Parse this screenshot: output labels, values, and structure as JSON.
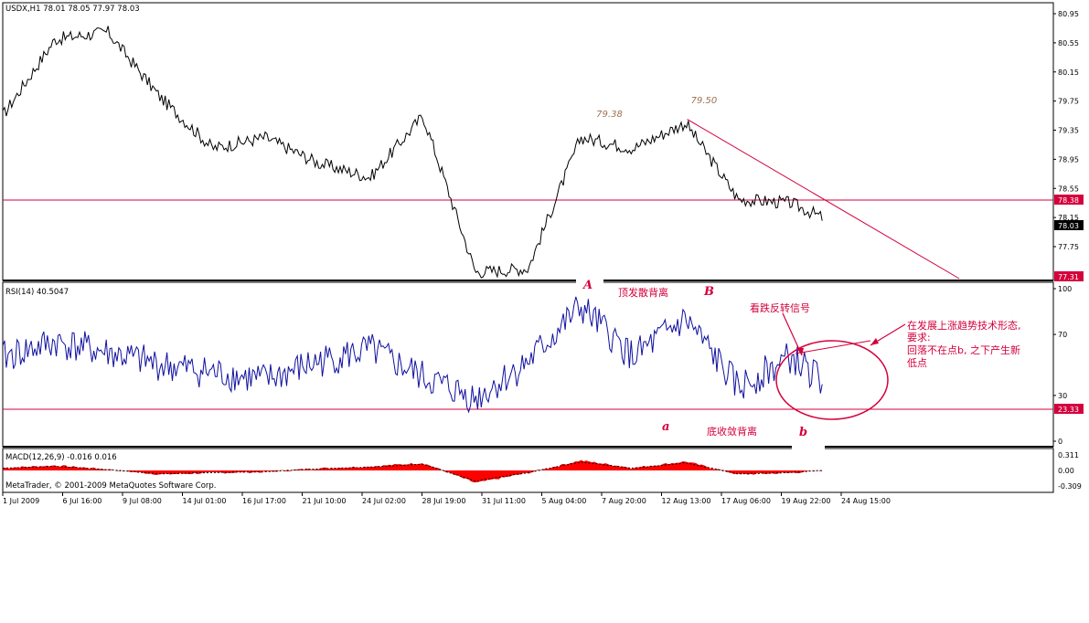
{
  "header": {
    "price": "USDX,H1  78.01 78.05 77.97 78.03",
    "rsi": "RSI(14) 40.5047",
    "macd": "MACD(12,26,9) -0.016 0.016",
    "copyright": "MetaTrader, © 2001-2009 MetaQuotes Software Corp."
  },
  "colors": {
    "price_line": "#000000",
    "rsi_line": "#1010a0",
    "macd_hist": "#ff0000",
    "signal_line": "#000000",
    "annotation": "#d4003c",
    "marker_bg": "#d4003c"
  },
  "chart_data": [
    {
      "type": "line",
      "pane": "price",
      "symbol": "USDX",
      "timeframe": "H1",
      "ohlc_current": {
        "open": 78.01,
        "high": 78.05,
        "low": 77.97,
        "close": 78.03
      },
      "yticks": [
        "80.95",
        "80.55",
        "80.15",
        "79.75",
        "79.35",
        "78.95",
        "78.55",
        "78.15",
        "77.75"
      ],
      "ylim": [
        77.3,
        81.0
      ],
      "price_markers": [
        "78.38",
        "78.03",
        "77.31"
      ],
      "hline": 78.38,
      "trendline": [
        {
          "x": 0.6515,
          "y": 79.5
        },
        {
          "x": 0.9105,
          "y": 77.31
        }
      ],
      "x": [
        0.0,
        0.05,
        0.1,
        0.15,
        0.2,
        0.25,
        0.3,
        0.35,
        0.4,
        0.45,
        0.5,
        0.55,
        0.6,
        0.65,
        0.7,
        0.75,
        0.78
      ],
      "values": [
        79.55,
        80.6,
        80.7,
        79.8,
        79.1,
        79.25,
        78.9,
        78.7,
        79.55,
        77.4,
        77.45,
        79.25,
        79.1,
        79.45,
        78.4,
        78.35,
        78.15
      ],
      "annotations": [
        {
          "text": "79.38",
          "x": 0.565,
          "y": 79.5
        },
        {
          "text": "79.50",
          "x": 0.655,
          "y": 79.62
        }
      ]
    },
    {
      "type": "line",
      "pane": "rsi",
      "name": "RSI(14)",
      "last": 40.5047,
      "yticks": [
        "100",
        "70",
        "30",
        "0"
      ],
      "ylim": [
        0,
        100
      ],
      "level": "23.33",
      "x": [
        0.0,
        0.05,
        0.1,
        0.15,
        0.2,
        0.25,
        0.3,
        0.35,
        0.4,
        0.45,
        0.5,
        0.55,
        0.6,
        0.65,
        0.7,
        0.75,
        0.78
      ],
      "values": [
        55,
        65,
        58,
        50,
        45,
        40,
        52,
        60,
        42,
        28,
        52,
        88,
        55,
        80,
        35,
        55,
        40
      ]
    },
    {
      "type": "bar",
      "pane": "macd",
      "name": "MACD(12,26,9)",
      "last_main": -0.016,
      "last_signal": 0.016,
      "yticks": [
        "0.311",
        "0.00",
        "-0.309"
      ],
      "ylim": [
        -0.35,
        0.35
      ],
      "x": [
        0.0,
        0.05,
        0.1,
        0.15,
        0.2,
        0.25,
        0.3,
        0.35,
        0.4,
        0.45,
        0.5,
        0.55,
        0.6,
        0.65,
        0.7,
        0.75,
        0.78
      ],
      "values": [
        0.05,
        0.1,
        0.02,
        -0.08,
        -0.05,
        -0.03,
        0.04,
        0.08,
        0.15,
        -0.25,
        -0.05,
        0.2,
        0.05,
        0.18,
        -0.08,
        -0.05,
        0.0
      ]
    }
  ],
  "x_axis": {
    "ticks": [
      "1 Jul 2009",
      "6 Jul 16:00",
      "9 Jul 08:00",
      "14 Jul 01:00",
      "16 Jul 17:00",
      "21 Jul 10:00",
      "24 Jul 02:00",
      "28 Jul 19:00",
      "31 Jul 11:00",
      "5 Aug 04:00",
      "7 Aug 20:00",
      "12 Aug 13:00",
      "17 Aug 06:00",
      "19 Aug 22:00",
      "24 Aug 15:00"
    ]
  },
  "annotations": {
    "top_divergence": "顶发散背离",
    "bottom_divergence": "底收敛背离",
    "reversal_signal": "看跌反转信号",
    "note_lines": [
      "在发展上涨趋势技术形态,",
      "要求:",
      "回落不在点b, 之下产生新",
      "低点"
    ],
    "letter_A": "A",
    "letter_B": "B",
    "letter_a": "a",
    "letter_b": "b"
  }
}
